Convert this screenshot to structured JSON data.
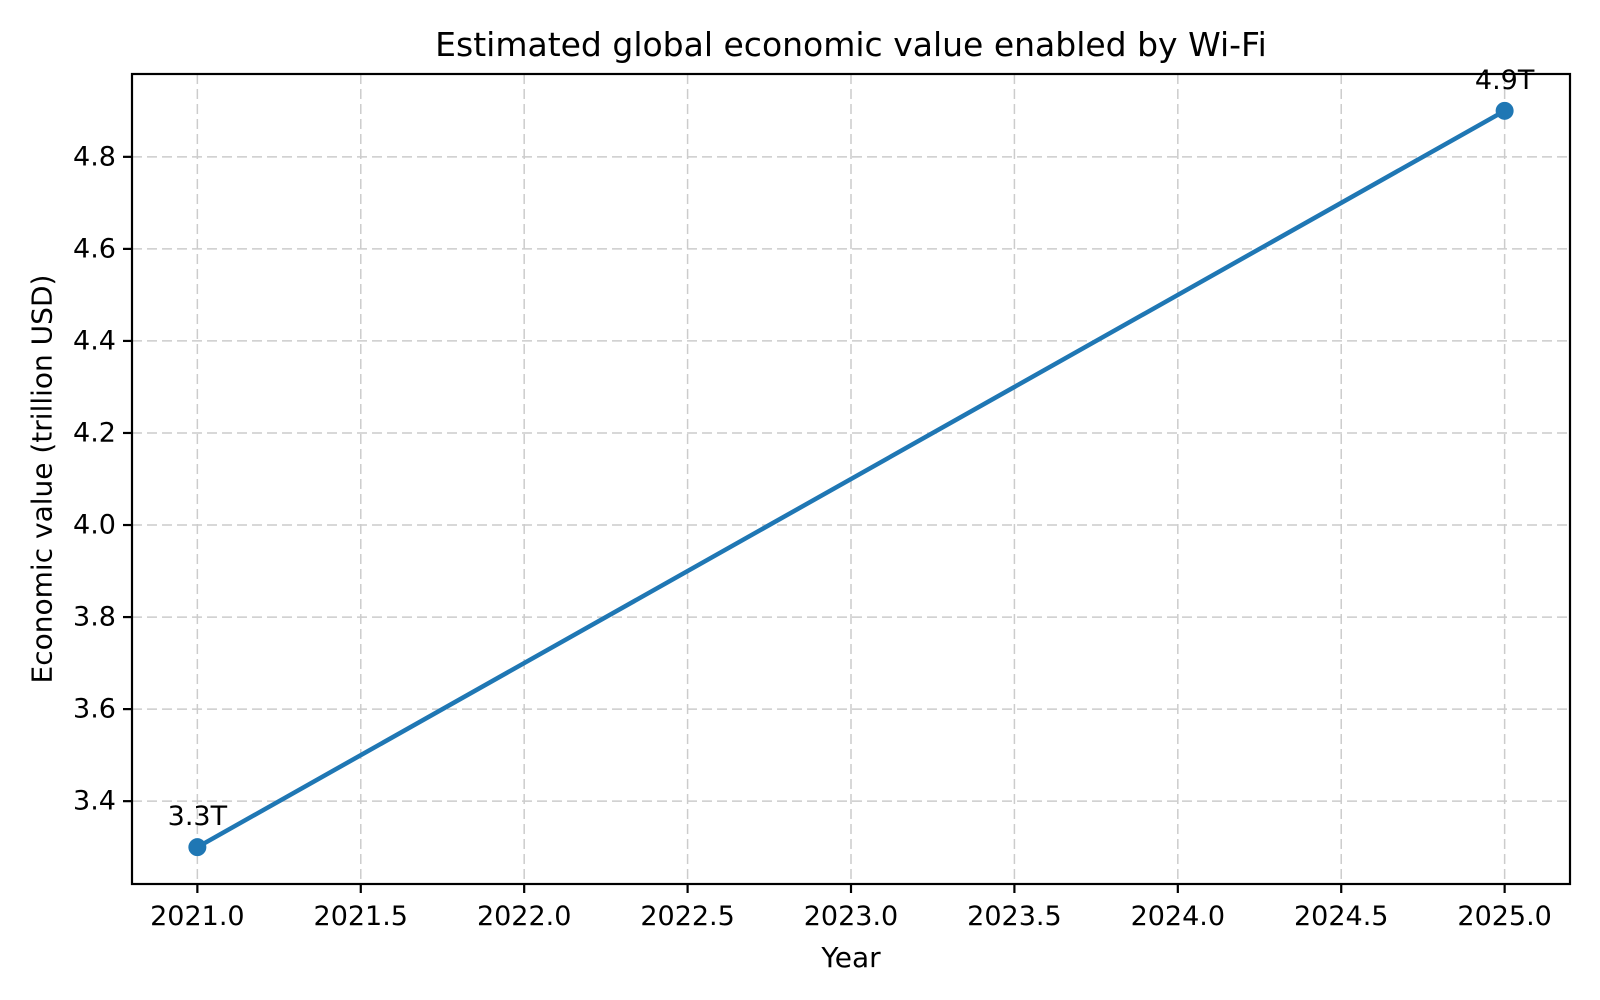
{
  "title": "Estimated global economic value enabled by Wi-Fi",
  "chart_data": {
    "type": "line",
    "title": "Estimated global economic value enabled by Wi-Fi",
    "xlabel": "Year",
    "ylabel": "Economic value (trillion USD)",
    "x": [
      2021,
      2025
    ],
    "y": [
      3.3,
      4.9
    ],
    "point_labels": [
      "3.3T",
      "4.9T"
    ],
    "xlim": [
      2020.8,
      2025.2
    ],
    "ylim": [
      3.22,
      4.98
    ],
    "xticks": {
      "values": [
        2021.0,
        2021.5,
        2022.0,
        2022.5,
        2023.0,
        2023.5,
        2024.0,
        2024.5,
        2025.0
      ],
      "labels": [
        "2021.0",
        "2021.5",
        "2022.0",
        "2022.5",
        "2023.0",
        "2023.5",
        "2024.0",
        "2024.5",
        "2025.0"
      ]
    },
    "yticks": {
      "values": [
        3.4,
        3.6,
        3.8,
        4.0,
        4.2,
        4.4,
        4.6,
        4.8
      ],
      "labels": [
        "3.4",
        "3.6",
        "3.8",
        "4.0",
        "4.2",
        "4.4",
        "4.6",
        "4.8"
      ]
    },
    "grid": true,
    "grid_style": "dashed",
    "legend": false,
    "line_color": "#1f77b4",
    "marker_color": "#1f77b4",
    "grid_color": "#cccccc",
    "spine_color": "#000000",
    "text_color": "#000000",
    "background": "#ffffff"
  }
}
